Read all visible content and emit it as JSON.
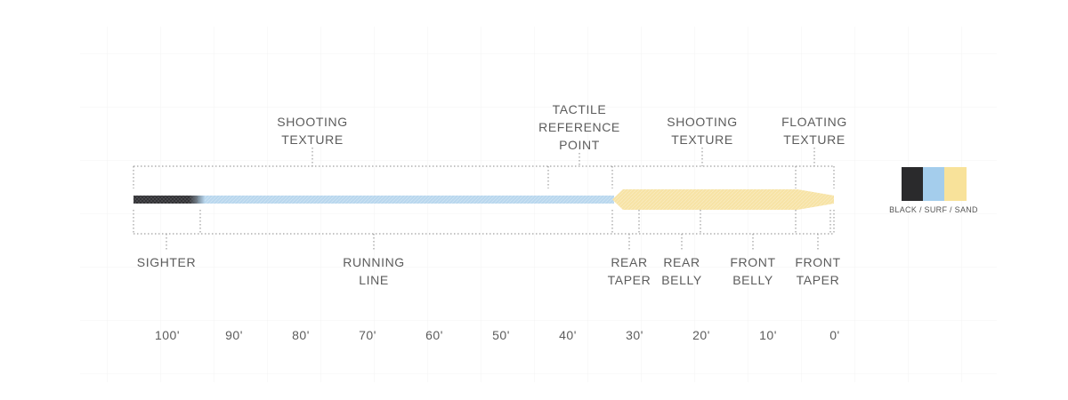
{
  "labels": {
    "shooting_texture_left": [
      "SHOOTING",
      "TEXTURE"
    ],
    "tactile_reference_point": [
      "TACTILE",
      "REFERENCE",
      "POINT"
    ],
    "shooting_texture_right": [
      "SHOOTING",
      "TEXTURE"
    ],
    "floating_texture": [
      "FLOATING",
      "TEXTURE"
    ],
    "sighter": [
      "SIGHTER"
    ],
    "running_line": [
      "RUNNING",
      "LINE"
    ],
    "rear_taper": [
      "REAR",
      "TAPER"
    ],
    "rear_belly": [
      "REAR",
      "BELLY"
    ],
    "front_belly": [
      "FRONT",
      "BELLY"
    ],
    "front_taper": [
      "FRONT",
      "TAPER"
    ]
  },
  "distance_scale": [
    "100'",
    "90'",
    "80'",
    "70'",
    "60'",
    "50'",
    "40'",
    "30'",
    "20'",
    "10'",
    "0'"
  ],
  "line_colors": {
    "sighter": "#2b2b2e",
    "running_line": "#b9d7ee",
    "head": "#f7e3a5"
  },
  "legend": {
    "caption": "BLACK / SURF / SAND",
    "swatches": [
      {
        "name": "black",
        "color": "#2a2a2c"
      },
      {
        "name": "surf",
        "color": "#a4cdec"
      },
      {
        "name": "sand",
        "color": "#f8e29a"
      }
    ]
  }
}
